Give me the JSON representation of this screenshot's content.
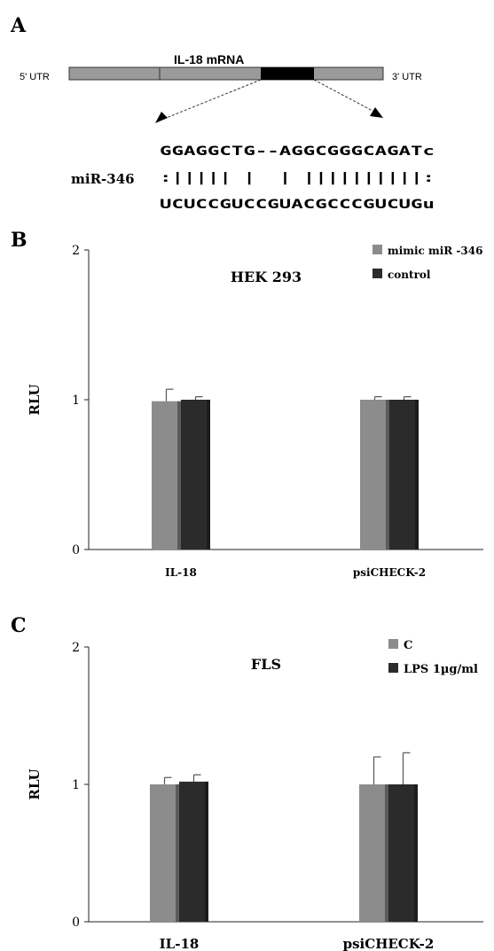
{
  "colors": {
    "series1": "#8c8c8c",
    "series2": "#2b2b2b",
    "axis": "#222222",
    "mrna_bar": "#9a9a9a",
    "target_region": "#000000"
  },
  "panel_a": {
    "label": "A",
    "mrna_label": "IL-18 mRNA",
    "utr5": "5' UTR",
    "utr3": "3' UTR",
    "mirna_name": "miR-346",
    "seq_top": "GGAGGCTG--AGGCGGGCAGATc",
    "seq_mid": ":||||| |  | ||||||||||:",
    "seq_bot": "UCUCCGUCCGUACGCCCGUCUGu"
  },
  "chart_data": [
    {
      "type": "bar",
      "panel": "B",
      "title": "HEK 293",
      "xlabel": "",
      "ylabel": "RLU",
      "ylim": [
        0,
        2
      ],
      "yticks": [
        "0",
        "1",
        "2"
      ],
      "categories": [
        "IL-18",
        "psiCHECK-2"
      ],
      "series": [
        {
          "name": "mimic miR -346",
          "values": [
            0.99,
            1.0
          ],
          "errors": [
            0.08,
            0.02
          ]
        },
        {
          "name": "control",
          "values": [
            1.0,
            1.0
          ],
          "errors": [
            0.02,
            0.02
          ]
        }
      ],
      "legend": "top-right",
      "grid": false
    },
    {
      "type": "bar",
      "panel": "C",
      "title": "FLS",
      "xlabel": "",
      "ylabel": "RLU",
      "ylim": [
        0,
        2
      ],
      "yticks": [
        "0",
        "1",
        "2"
      ],
      "categories": [
        "IL-18",
        "psiCHECK-2"
      ],
      "series": [
        {
          "name": "C",
          "values": [
            1.0,
            1.0
          ],
          "errors": [
            0.05,
            0.2
          ]
        },
        {
          "name": "LPS 1µg/ml",
          "values": [
            1.02,
            1.0
          ],
          "errors": [
            0.05,
            0.23
          ]
        }
      ],
      "legend": "top-right",
      "grid": false
    }
  ]
}
